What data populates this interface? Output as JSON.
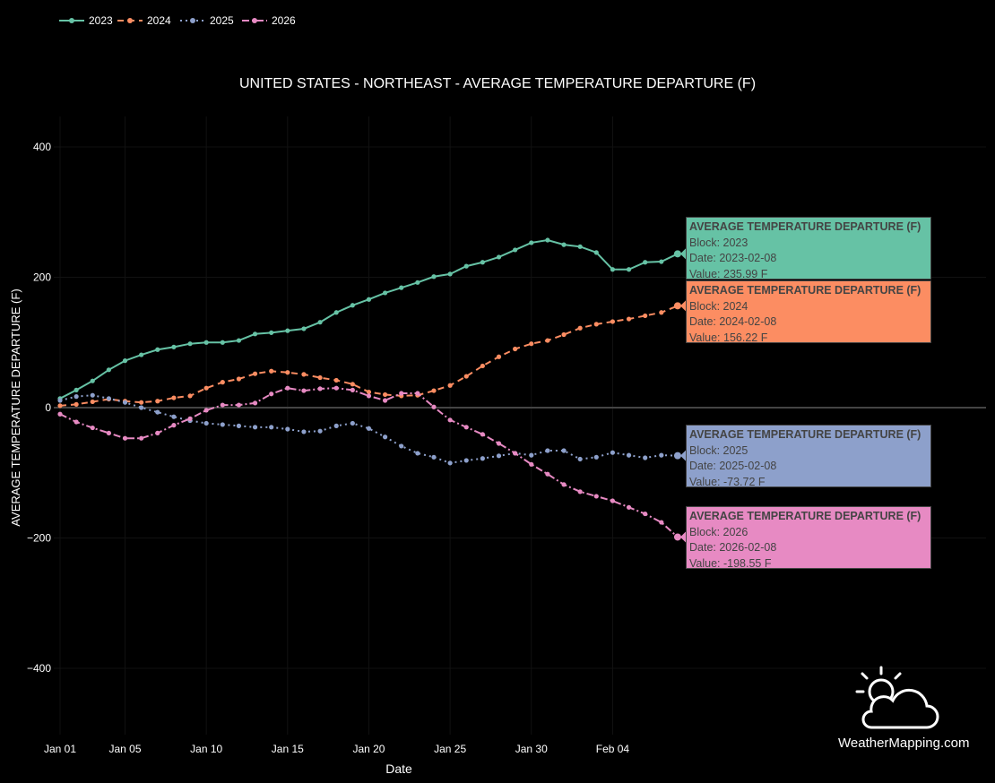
{
  "chart_data": {
    "type": "line",
    "title": "UNITED STATES - NORTHEAST - AVERAGE TEMPERATURE DEPARTURE (F)",
    "xlabel": "Date",
    "ylabel": "AVERAGE TEMPERATURE DEPARTURE (F)",
    "ylim": [
      -500,
      450
    ],
    "yticks": [
      "400",
      "200",
      "0",
      "−200",
      "−400"
    ],
    "ytick_values": [
      400,
      200,
      0,
      -200,
      -400
    ],
    "xticks": [
      "Jan 01",
      "Jan 05",
      "Jan 10",
      "Jan 15",
      "Jan 20",
      "Jan 25",
      "Jan 30",
      "Feb 04"
    ],
    "xtick_days": [
      1,
      5,
      10,
      15,
      20,
      25,
      30,
      35
    ],
    "legend_placement": "top-left",
    "grid": true,
    "x": [
      "Jan 01",
      "Jan 02",
      "Jan 03",
      "Jan 04",
      "Jan 05",
      "Jan 06",
      "Jan 07",
      "Jan 08",
      "Jan 09",
      "Jan 10",
      "Jan 11",
      "Jan 12",
      "Jan 13",
      "Jan 14",
      "Jan 15",
      "Jan 16",
      "Jan 17",
      "Jan 18",
      "Jan 19",
      "Jan 20",
      "Jan 21",
      "Jan 22",
      "Jan 23",
      "Jan 24",
      "Jan 25",
      "Jan 26",
      "Jan 27",
      "Jan 28",
      "Jan 29",
      "Jan 30",
      "Jan 31",
      "Feb 01",
      "Feb 02",
      "Feb 03",
      "Feb 04",
      "Feb 05",
      "Feb 06",
      "Feb 07",
      "Feb 08"
    ],
    "series": [
      {
        "name": "2023",
        "color": "#66c2a5",
        "dash": "",
        "values": [
          14,
          27,
          41,
          58,
          72,
          81,
          89,
          93,
          98,
          100,
          100,
          103,
          113,
          115,
          118,
          121,
          131,
          146,
          157,
          166,
          176,
          184,
          192,
          201,
          205,
          217,
          223,
          231,
          242,
          253,
          257,
          250,
          247,
          238,
          212,
          212,
          223,
          224,
          235.99
        ]
      },
      {
        "name": "2024",
        "color": "#fc8d62",
        "dash": "7,5",
        "values": [
          3,
          5,
          9,
          13,
          10,
          8,
          10,
          15,
          18,
          30,
          39,
          44,
          52,
          56,
          54,
          51,
          46,
          42,
          36,
          24,
          20,
          18,
          19,
          26,
          34,
          48,
          64,
          78,
          90,
          98,
          103,
          112,
          122,
          128,
          132,
          136,
          141,
          146,
          156.22
        ]
      },
      {
        "name": "2025",
        "color": "#8da0cb",
        "dash": "2,4",
        "values": [
          11,
          17,
          19,
          14,
          8,
          0,
          -7,
          -14,
          -20,
          -24,
          -26,
          -28,
          -30,
          -30,
          -33,
          -37,
          -36,
          -28,
          -24,
          -32,
          -45,
          -59,
          -70,
          -76,
          -85,
          -81,
          -78,
          -74,
          -70,
          -73,
          -66,
          -66,
          -79,
          -76,
          -69,
          -73,
          -77,
          -73,
          -73.72
        ]
      },
      {
        "name": "2026",
        "color": "#e78ac3",
        "dash": "8,3,2,3",
        "values": [
          -10,
          -22,
          -31,
          -39,
          -47,
          -47,
          -39,
          -27,
          -17,
          -4,
          4,
          4,
          7,
          21,
          30,
          26,
          29,
          30,
          27,
          18,
          11,
          22,
          22,
          1,
          -19,
          -30,
          -41,
          -55,
          -70,
          -87,
          -102,
          -118,
          -129,
          -136,
          -143,
          -153,
          -163,
          -176,
          -198.55
        ]
      }
    ],
    "tooltips": [
      {
        "title": "AVERAGE TEMPERATURE DEPARTURE (F)",
        "block": "Block: 2023",
        "date": "Date: 2023-02-08",
        "value": "Value: 235.99 F"
      },
      {
        "title": "AVERAGE TEMPERATURE DEPARTURE (F)",
        "block": "Block: 2024",
        "date": "Date: 2024-02-08",
        "value": "Value: 156.22 F"
      },
      {
        "title": "AVERAGE TEMPERATURE DEPARTURE (F)",
        "block": "Block: 2025",
        "date": "Date: 2025-02-08",
        "value": "Value: -73.72 F"
      },
      {
        "title": "AVERAGE TEMPERATURE DEPARTURE (F)",
        "block": "Block: 2026",
        "date": "Date: 2026-02-08",
        "value": "Value: -198.55 F"
      }
    ]
  },
  "logo": {
    "text": "WeatherMapping.com",
    "icon": "sun-cloud-icon"
  }
}
